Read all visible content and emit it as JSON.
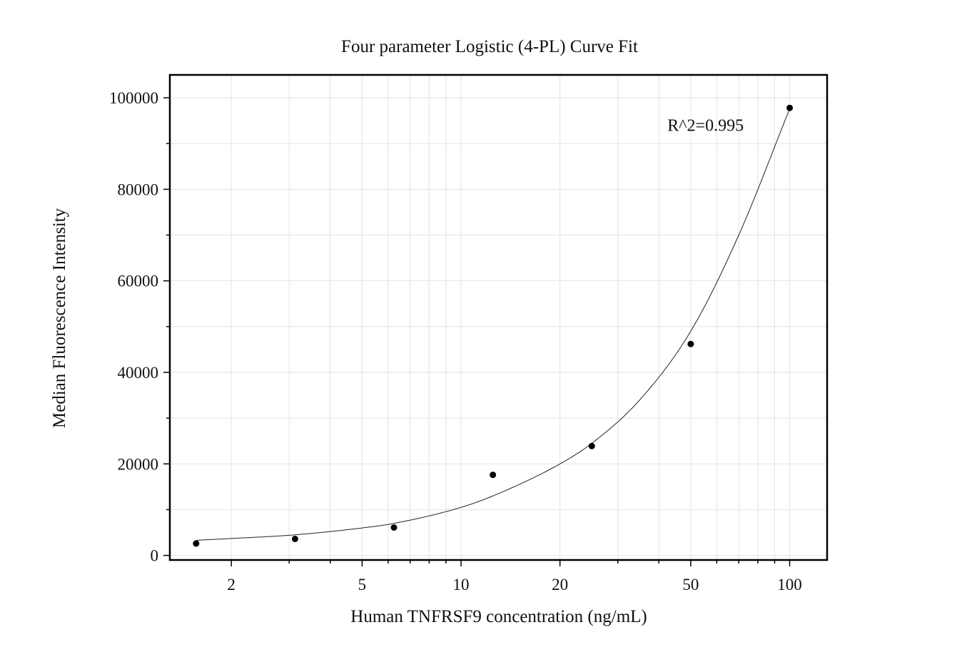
{
  "chart_data": {
    "type": "scatter",
    "title": "Four parameter Logistic (4-PL) Curve Fit",
    "xlabel": "Human TNFRSF9 concentration (ng/mL)",
    "ylabel": "Median Fluorescence Intensity",
    "x_scale": "log",
    "xlim": [
      1.3,
      130
    ],
    "ylim": [
      -1000,
      105000
    ],
    "x_ticks": [
      2,
      5,
      10,
      20,
      50,
      100
    ],
    "x_tick_labels": [
      "2",
      "5",
      "10",
      "20",
      "50",
      "100"
    ],
    "y_ticks": [
      0,
      20000,
      40000,
      60000,
      80000,
      100000
    ],
    "y_tick_labels": [
      "0",
      "20000",
      "40000",
      "60000",
      "80000",
      "100000"
    ],
    "grid": true,
    "series": [
      {
        "type": "scatter",
        "x": [
          1.5625,
          3.125,
          6.25,
          12.5,
          25,
          50,
          100
        ],
        "y": [
          2600,
          3600,
          6100,
          17600,
          23900,
          46200,
          97800
        ],
        "color": "#000000"
      },
      {
        "type": "line",
        "x": [
          1.5625,
          2,
          3.125,
          5,
          6.25,
          10,
          12.5,
          20,
          25,
          35,
          50,
          70,
          100
        ],
        "y": [
          3300,
          3700,
          4500,
          6000,
          7000,
          10500,
          13000,
          20000,
          24500,
          34000,
          49000,
          70000,
          97600
        ],
        "color": "#000000"
      }
    ],
    "annotations": [
      {
        "text": "R^2=0.995",
        "x": 25,
        "y": 94000
      }
    ]
  }
}
